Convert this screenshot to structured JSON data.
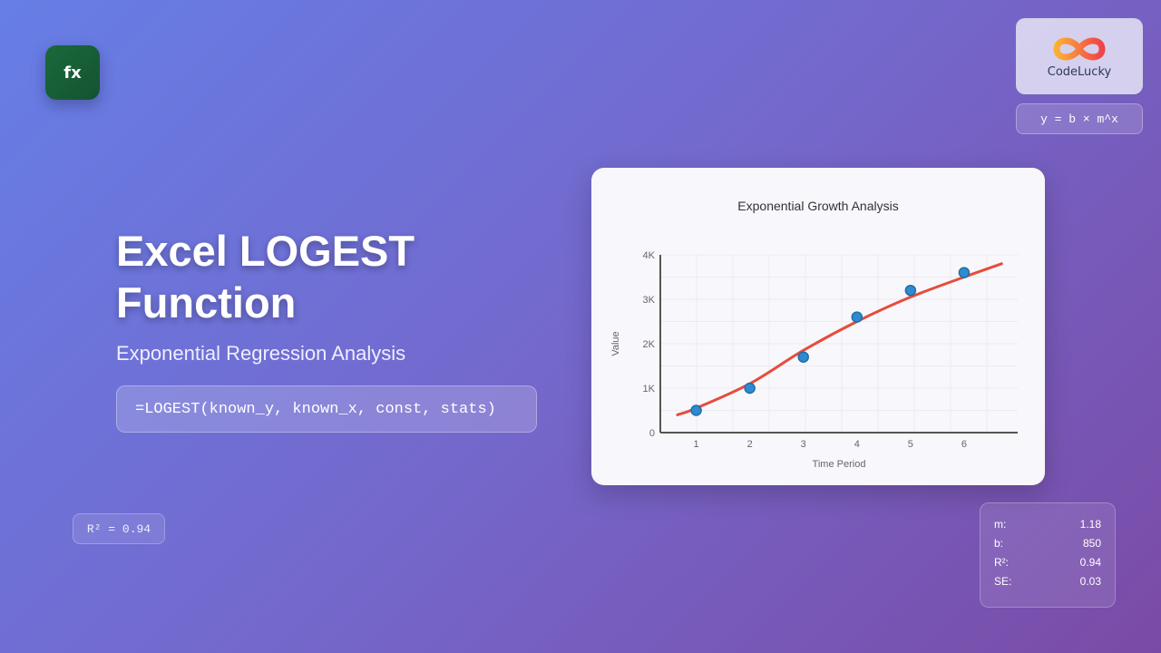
{
  "badge": {
    "icon_text": "fx"
  },
  "title_line1": "Excel LOGEST",
  "title_line2": "Function",
  "subtitle": "Exponential Regression Analysis",
  "formula": "=LOGEST(known_y, known_x, const, stats)",
  "r2_badge": "R² = 0.94",
  "logo": {
    "name": "CodeLucky"
  },
  "equation": "y = b × m^x",
  "stats": [
    {
      "label": "m:",
      "value": "1.18"
    },
    {
      "label": "b:",
      "value": "850"
    },
    {
      "label": "R²:",
      "value": "0.94"
    },
    {
      "label": "SE:",
      "value": "0.03"
    }
  ],
  "colors": {
    "points": "#2e8bd0",
    "trend": "#e74c3c",
    "badge": "#1b6a3a"
  },
  "chart_data": {
    "type": "scatter",
    "title": "Exponential Growth Analysis",
    "xlabel": "Time Period",
    "ylabel": "Value",
    "x_ticks": [
      "1",
      "2",
      "3",
      "4",
      "5",
      "6"
    ],
    "y_ticks": [
      "0",
      "1K",
      "2K",
      "3K",
      "4K"
    ],
    "ylim": [
      0,
      4000
    ],
    "xlim": [
      0.33,
      7
    ],
    "grid": true,
    "series": [
      {
        "type": "scatter",
        "x": [
          1,
          2,
          3,
          4,
          5,
          6
        ],
        "y": [
          500,
          1000,
          1700,
          2600,
          3200,
          3600
        ]
      },
      {
        "type": "line",
        "x": [
          0.65,
          1,
          2,
          3,
          4,
          5,
          6,
          6.7
        ],
        "y": [
          400,
          550,
          1100,
          1850,
          2500,
          3050,
          3500,
          3800
        ]
      }
    ]
  }
}
